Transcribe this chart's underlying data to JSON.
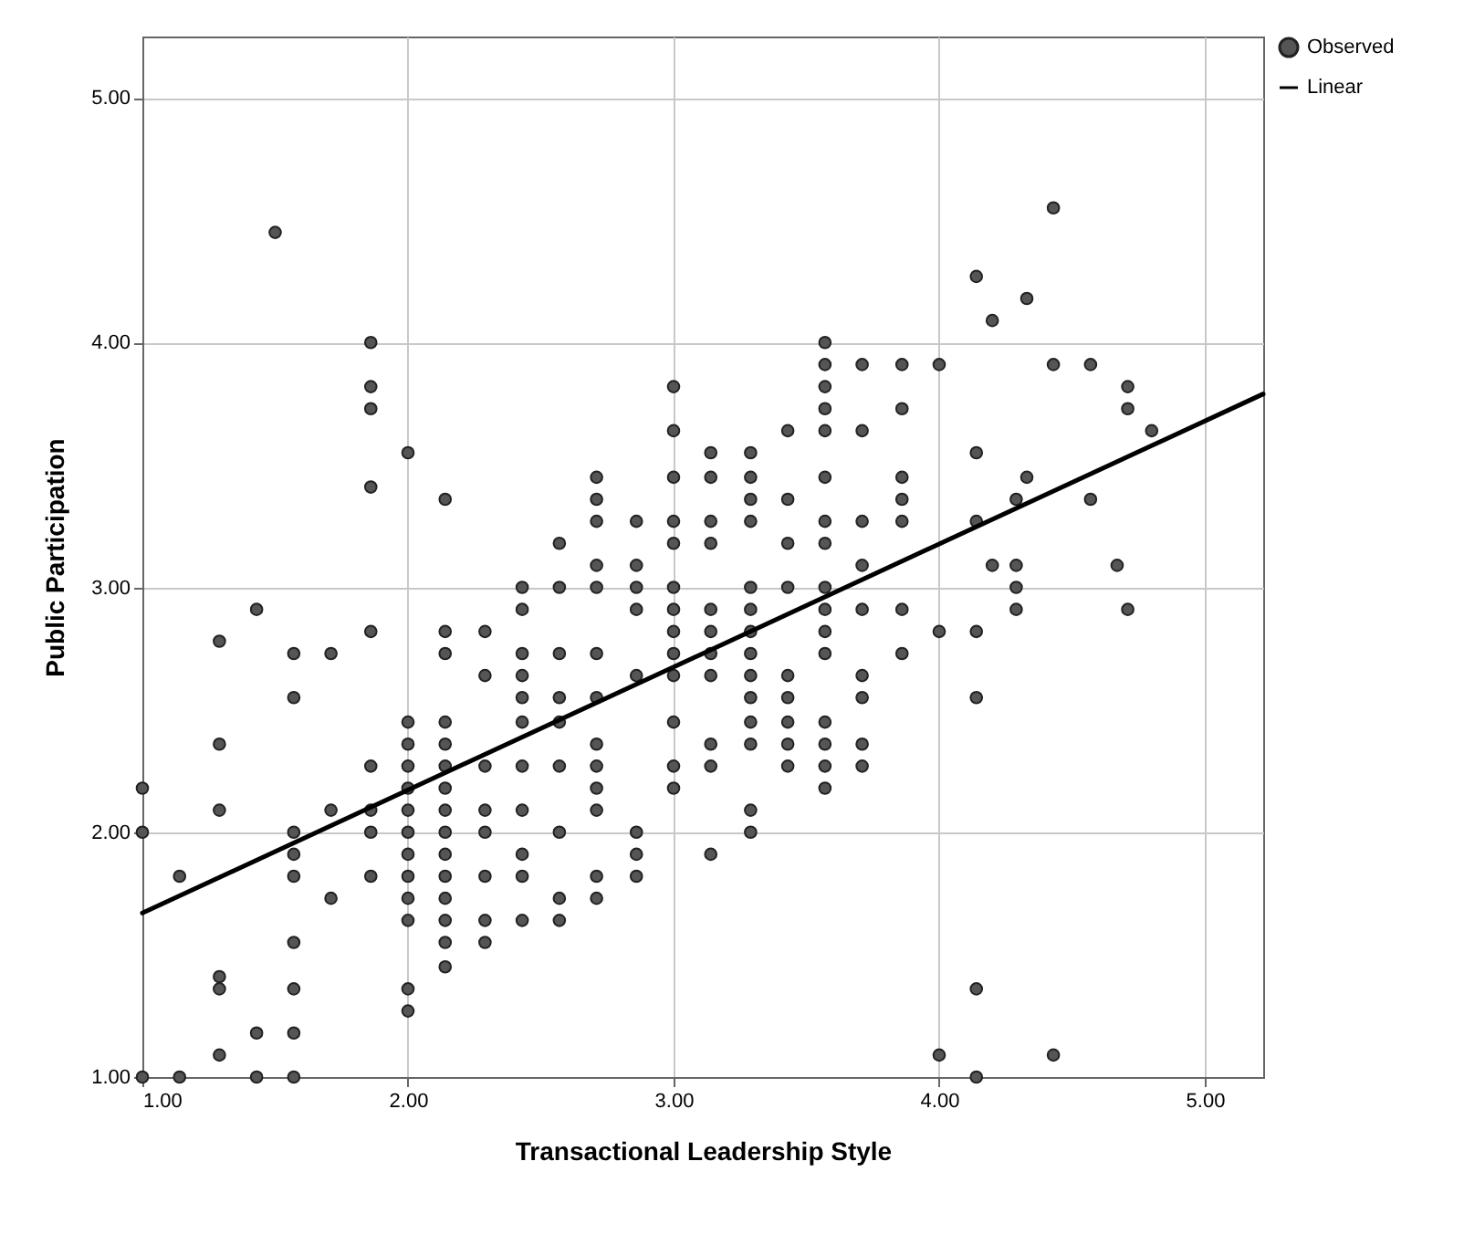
{
  "chart_data": {
    "type": "scatter",
    "xlabel": "Transactional Leadership Style",
    "ylabel": "Public Participation",
    "xlim": [
      1,
      5.22
    ],
    "ylim": [
      1,
      5.25
    ],
    "xticks": [
      {
        "value": 1,
        "label": "1.00"
      },
      {
        "value": 2,
        "label": "2.00"
      },
      {
        "value": 3,
        "label": "3.00"
      },
      {
        "value": 4,
        "label": "4.00"
      },
      {
        "value": 5,
        "label": "5.00"
      }
    ],
    "yticks": [
      {
        "value": 1,
        "label": "1.00"
      },
      {
        "value": 2,
        "label": "2.00"
      },
      {
        "value": 3,
        "label": "3.00"
      },
      {
        "value": 4,
        "label": "4.00"
      },
      {
        "value": 5,
        "label": "5.00"
      }
    ],
    "grid": true,
    "legend": "top right",
    "line_style": "solid",
    "series": [
      {
        "name": "Observed",
        "marker": "circle",
        "color": "#555555",
        "x": [
          1,
          1,
          1,
          1.14,
          1.14,
          1.29,
          1.29,
          1.29,
          1.29,
          1.29,
          1.29,
          1.43,
          1.43,
          1.43,
          1.5,
          1.57,
          1.57,
          1.57,
          1.57,
          1.57,
          1.57,
          1.57,
          1.57,
          1.57,
          1.71,
          1.71,
          1.71,
          1.86,
          1.86,
          1.86,
          1.86,
          1.86,
          1.86,
          1.86,
          1.86,
          1.86,
          2,
          2,
          2,
          2,
          2,
          2,
          2,
          2,
          2,
          2,
          2,
          2,
          2,
          2.14,
          2.14,
          2.14,
          2.14,
          2.14,
          2.14,
          2.14,
          2.14,
          2.14,
          2.14,
          2.14,
          2.14,
          2.14,
          2.14,
          2.14,
          2.29,
          2.29,
          2.29,
          2.29,
          2.29,
          2.29,
          2.29,
          2.29,
          2.43,
          2.43,
          2.43,
          2.43,
          2.43,
          2.43,
          2.43,
          2.43,
          2.43,
          2.43,
          2.43,
          2.57,
          2.57,
          2.57,
          2.57,
          2.57,
          2.57,
          2.57,
          2.57,
          2.57,
          2.71,
          2.71,
          2.71,
          2.71,
          2.71,
          2.71,
          2.71,
          2.71,
          2.71,
          2.71,
          2.71,
          2.71,
          2.71,
          2.86,
          2.86,
          2.86,
          2.86,
          2.86,
          2.86,
          2.86,
          2.86,
          3,
          3,
          3,
          3,
          3,
          3,
          3,
          3,
          3,
          3,
          3,
          3,
          3,
          3.14,
          3.14,
          3.14,
          3.14,
          3.14,
          3.14,
          3.14,
          3.14,
          3.14,
          3.14,
          3.14,
          3.29,
          3.29,
          3.29,
          3.29,
          3.29,
          3.29,
          3.29,
          3.29,
          3.29,
          3.29,
          3.29,
          3.29,
          3.29,
          3.29,
          3.43,
          3.43,
          3.43,
          3.43,
          3.43,
          3.43,
          3.43,
          3.43,
          3.43,
          3.57,
          3.57,
          3.57,
          3.57,
          3.57,
          3.57,
          3.57,
          3.57,
          3.57,
          3.57,
          3.57,
          3.57,
          3.57,
          3.57,
          3.57,
          3.57,
          3.71,
          3.71,
          3.71,
          3.71,
          3.71,
          3.71,
          3.71,
          3.71,
          3.71,
          3.86,
          3.86,
          3.86,
          3.86,
          3.86,
          3.86,
          3.86,
          4,
          4,
          4,
          4.14,
          4.14,
          4.14,
          4.14,
          4.14,
          4.14,
          4.14,
          4.2,
          4.2,
          4.29,
          4.29,
          4.29,
          4.29,
          4.33,
          4.33,
          4.43,
          4.43,
          4.43,
          4.57,
          4.57,
          4.67,
          4.71,
          4.71,
          4.71,
          4.8
        ],
        "values": [
          2.18,
          2,
          1,
          1.82,
          1,
          2.78,
          2.36,
          2.09,
          1.41,
          1.36,
          1.09,
          2.91,
          1.18,
          1,
          4.45,
          2.73,
          2.55,
          2,
          1.91,
          1.82,
          1.55,
          1.36,
          1.18,
          1,
          2.73,
          2.09,
          1.73,
          4,
          3.82,
          3.73,
          3.41,
          2.82,
          2.27,
          2.09,
          2,
          1.82,
          3.55,
          2.45,
          2.36,
          2.27,
          2.18,
          2.09,
          2,
          1.91,
          1.82,
          1.73,
          1.64,
          1.36,
          1.27,
          3.36,
          2.82,
          2.73,
          2.45,
          2.36,
          2.27,
          2.18,
          2.09,
          2,
          1.91,
          1.82,
          1.73,
          1.64,
          1.55,
          1.45,
          2.82,
          2.64,
          2.27,
          2.09,
          2,
          1.82,
          1.64,
          1.55,
          3,
          2.91,
          2.73,
          2.64,
          2.55,
          2.45,
          2.27,
          2.09,
          1.91,
          1.82,
          1.64,
          3.18,
          3,
          2.73,
          2.55,
          2.45,
          2.27,
          2,
          1.73,
          1.64,
          3.45,
          3.36,
          3.27,
          3.09,
          3,
          2.73,
          2.55,
          2.36,
          2.27,
          2.18,
          2.09,
          1.82,
          1.73,
          3.27,
          3.09,
          3,
          2.91,
          2.64,
          2,
          1.91,
          1.82,
          3.82,
          3.64,
          3.45,
          3.27,
          3.18,
          3,
          2.91,
          2.82,
          2.73,
          2.64,
          2.45,
          2.27,
          2.18,
          3.55,
          3.45,
          3.27,
          3.18,
          2.91,
          2.82,
          2.73,
          2.64,
          2.36,
          2.27,
          1.91,
          3.55,
          3.45,
          3.36,
          3.27,
          3,
          2.91,
          2.82,
          2.73,
          2.64,
          2.55,
          2.45,
          2.36,
          2.09,
          2,
          3.64,
          3.36,
          3.18,
          3,
          2.64,
          2.55,
          2.45,
          2.36,
          2.27,
          4,
          3.91,
          3.82,
          3.73,
          3.64,
          3.45,
          3.27,
          3.18,
          3,
          2.91,
          2.82,
          2.73,
          2.45,
          2.36,
          2.27,
          2.18,
          3.91,
          3.64,
          3.27,
          3.09,
          2.91,
          2.64,
          2.55,
          2.36,
          2.27,
          3.91,
          3.73,
          3.45,
          3.36,
          3.27,
          2.91,
          2.73,
          3.91,
          2.82,
          1.09,
          4.27,
          3.55,
          3.27,
          2.82,
          2.55,
          1.36,
          1,
          4.09,
          3.09,
          3.36,
          3.09,
          3,
          2.91,
          4.18,
          3.45,
          4.55,
          3.91,
          1.09,
          3.91,
          3.36,
          3.09,
          3.82,
          3.73,
          2.91,
          3.64
        ]
      },
      {
        "name": "Linear",
        "type": "line",
        "marker": "none",
        "color": "#000000",
        "x": [
          1,
          5.22
        ],
        "values": [
          1.67,
          3.79
        ]
      }
    ]
  }
}
